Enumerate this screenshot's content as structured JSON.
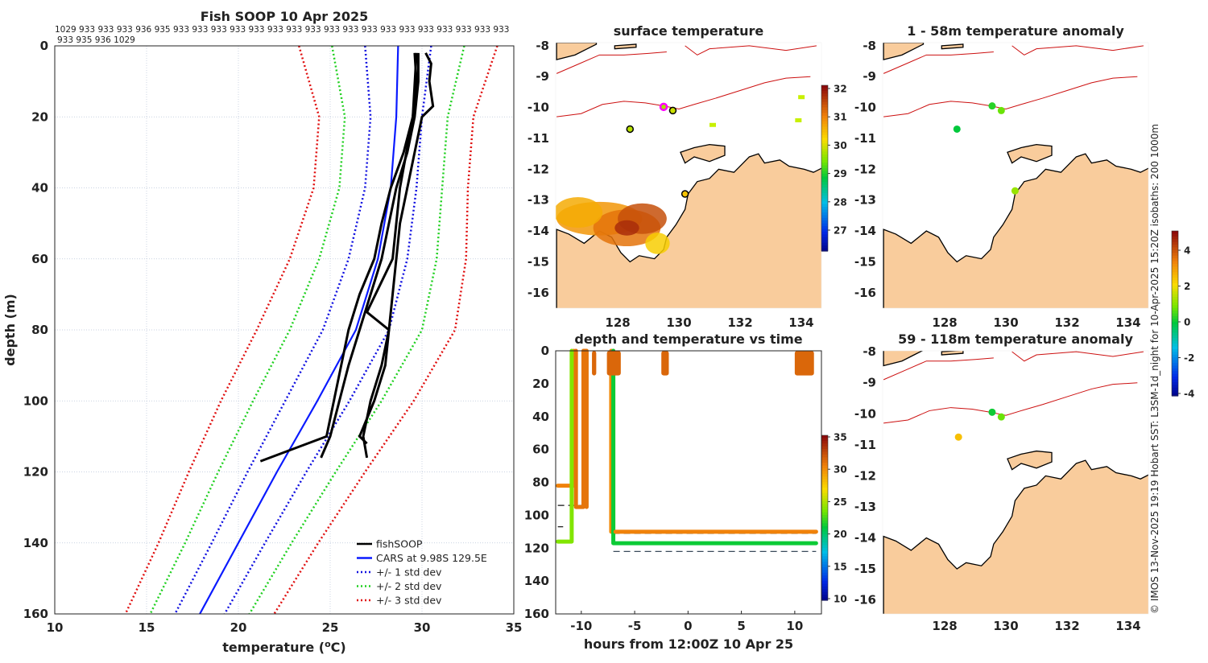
{
  "chart_data": [
    {
      "type": "line",
      "title": "Fish SOOP 10 Apr 2025",
      "pressure_labels_line1": "1029 933 933 933 936 935 933 933 933 933 933 933 933 933 933 933 933 933 933 933 933 933 933 933",
      "pressure_labels_line2": "933 935 936 1029",
      "xlabel": "temperature (°C)",
      "xlabel_main": "temperature (",
      "xlabel_sup": "o",
      "xlabel_end": "C)",
      "ylabel": "depth (m)",
      "xlim": [
        10,
        35
      ],
      "ylim": [
        0,
        160
      ],
      "y_reversed": true,
      "xticks": [
        "10",
        "15",
        "20",
        "25",
        "30",
        "35"
      ],
      "yticks": [
        "0",
        "20",
        "40",
        "60",
        "80",
        "100",
        "120",
        "140",
        "160"
      ],
      "grid": true,
      "legend_placement": "bottom-right",
      "legend": [
        "fishSOOP",
        "CARS at 9.98S 129.5E",
        "+/- 1 std dev",
        "+/- 2 std dev",
        "+/- 3 std dev"
      ],
      "cars": {
        "depth": [
          0,
          20,
          40,
          60,
          80,
          100,
          120,
          140,
          160
        ],
        "mean": [
          28.7,
          28.6,
          28.3,
          27.6,
          26.4,
          24.3,
          22.1,
          20.0,
          17.9
        ],
        "std": [
          1.8,
          1.4,
          1.4,
          1.6,
          1.8,
          1.75,
          1.6,
          1.45,
          1.35
        ]
      },
      "fishsoop_profiles": [
        {
          "depth": [
            2,
            5,
            10,
            17,
            20,
            30,
            40,
            50,
            60,
            70,
            80,
            90,
            100,
            110,
            116
          ],
          "temp": [
            30.2,
            30.5,
            30.4,
            30.6,
            30.0,
            29.6,
            29.2,
            28.8,
            28.6,
            28.4,
            28.2,
            27.8,
            27.2,
            26.8,
            27.0
          ]
        },
        {
          "depth": [
            2,
            10,
            20,
            30,
            40,
            50,
            60,
            70,
            80,
            90,
            100,
            110,
            116
          ],
          "temp": [
            29.8,
            29.8,
            29.6,
            29.2,
            28.6,
            28.2,
            27.8,
            27.2,
            26.6,
            26.0,
            25.5,
            25.0,
            24.5
          ]
        },
        {
          "depth": [
            2,
            10,
            20,
            30,
            40,
            50,
            60,
            70,
            80,
            90,
            100,
            110,
            117
          ],
          "temp": [
            29.6,
            29.7,
            29.5,
            29.0,
            28.3,
            27.8,
            27.4,
            26.6,
            26.0,
            25.6,
            25.2,
            24.8,
            21.2
          ]
        },
        {
          "depth": [
            2,
            20,
            40,
            60,
            75,
            80,
            90,
            100,
            110,
            112
          ],
          "temp": [
            29.7,
            29.5,
            28.8,
            28.4,
            27.0,
            28.2,
            28.0,
            27.4,
            26.6,
            27.0
          ]
        }
      ]
    },
    {
      "type": "heatmap",
      "title": "surface temperature",
      "xlim": [
        125.97,
        134.66
      ],
      "ylim": [
        -16.5,
        -7.9
      ],
      "xticks": [
        "128",
        "130",
        "132",
        "134"
      ],
      "yticks": [
        "-8",
        "-9",
        "-10",
        "-11",
        "-12",
        "-13",
        "-14",
        "-15",
        "-16"
      ],
      "colorbar": {
        "min": 26.5,
        "max": 32.2,
        "ticks": [
          "32",
          "31",
          "30",
          "29",
          "28",
          "27"
        ]
      },
      "points": [
        {
          "lon": 128.4,
          "lat": -10.7,
          "value": 30.0
        },
        {
          "lon": 129.5,
          "lat": -9.98,
          "value": 29.9,
          "highlight": true
        },
        {
          "lon": 129.8,
          "lat": -10.1,
          "value": 30.1
        },
        {
          "lon": 130.2,
          "lat": -12.8,
          "value": 30.6
        }
      ],
      "sst_patch_values": [
        31.0,
        31.3,
        31.6,
        31.9,
        30.8,
        30.5
      ]
    },
    {
      "type": "scatter",
      "title": "depth and temperature vs time",
      "xlabel": "hours from 12:00Z 10 Apr 25",
      "xlim": [
        -12.4,
        12.5
      ],
      "ylim": [
        0,
        160
      ],
      "y_reversed": true,
      "xticks": [
        "-10",
        "-5",
        "0",
        "5",
        "10"
      ],
      "yticks": [
        "0",
        "20",
        "40",
        "60",
        "80",
        "100",
        "120",
        "140",
        "160"
      ],
      "colorbar": {
        "min": 10,
        "max": 35,
        "ticks": [
          "35",
          "30",
          "25",
          "20",
          "15",
          "10"
        ]
      },
      "traces": [
        {
          "t": [
            -12.2,
            -10.7,
            -10.7,
            -10.7
          ],
          "depth": [
            82,
            82,
            40,
            0
          ],
          "temp": 30.5
        },
        {
          "t": [
            -12.2,
            -10.9,
            -10.9,
            -10.9
          ],
          "depth": [
            116,
            116,
            100,
            0
          ],
          "temp": 24.0
        },
        {
          "t": [
            -10.5,
            -10.5,
            -9.8,
            -9.8,
            -9.5,
            -9.5
          ],
          "depth": [
            0,
            95,
            95,
            0,
            0,
            95
          ],
          "temp": 31.0
        },
        {
          "t": [
            -7.2,
            -7.2,
            -7.0,
            -7.0
          ],
          "depth": [
            0,
            110,
            110,
            0
          ],
          "temp": 30.2
        },
        {
          "t": [
            -7.0,
            -7.0,
            12.0
          ],
          "depth": [
            0,
            117,
            117
          ],
          "temp": 21.5
        },
        {
          "t": [
            -6.8,
            12.0
          ],
          "depth": [
            110,
            110
          ],
          "temp": 30.5
        },
        {
          "t": [
            -9.0,
            -8.6
          ],
          "depth": [
            0,
            15
          ],
          "temp": 31.5
        },
        {
          "t": [
            -7.6,
            -6.3
          ],
          "depth": [
            0,
            15
          ],
          "temp": 31.5
        },
        {
          "t": [
            -2.5,
            -1.8
          ],
          "depth": [
            0,
            15
          ],
          "temp": 31.5
        },
        {
          "t": [
            10.0,
            11.8
          ],
          "depth": [
            0,
            15
          ],
          "temp": 31.5
        }
      ],
      "bottom_depth_lines": [
        {
          "t": [
            -12.2,
            -9.5
          ],
          "depth": 94
        },
        {
          "t": [
            -12.2,
            -11.7
          ],
          "depth": 107
        },
        {
          "t": [
            -7.0,
            12.0
          ],
          "depth": 111
        },
        {
          "t": [
            -7.0,
            12.0
          ],
          "depth": 122
        }
      ]
    },
    {
      "type": "scatter",
      "title": "1 - 58m temperature anomaly",
      "xlim": [
        125.97,
        134.66
      ],
      "ylim": [
        -16.5,
        -7.9
      ],
      "xticks": [
        "128",
        "130",
        "132",
        "134"
      ],
      "yticks": [
        "-8",
        "-9",
        "-10",
        "-11",
        "-12",
        "-13",
        "-14",
        "-15",
        "-16"
      ],
      "points": [
        {
          "lon": 129.55,
          "lat": -9.95,
          "value": 0.3
        },
        {
          "lon": 129.85,
          "lat": -10.1,
          "value": 0.8
        },
        {
          "lon": 128.4,
          "lat": -10.7,
          "value": 0.0
        },
        {
          "lon": 130.3,
          "lat": -12.7,
          "value": 1.2
        }
      ]
    },
    {
      "type": "scatter",
      "title": "59 - 118m temperature anomaly",
      "xlim": [
        125.97,
        134.66
      ],
      "ylim": [
        -16.45,
        -7.97
      ],
      "xticks": [
        "128",
        "130",
        "132",
        "134"
      ],
      "yticks": [
        "-8",
        "-9",
        "-10",
        "-11",
        "-12",
        "-13",
        "-14",
        "-15",
        "-16"
      ],
      "colorbar": {
        "min": -4.1,
        "max": 5.0,
        "ticks": [
          "4",
          "2",
          "0",
          "-2",
          "-4"
        ]
      },
      "points": [
        {
          "lon": 129.55,
          "lat": -9.95,
          "value": 0.1
        },
        {
          "lon": 129.85,
          "lat": -10.1,
          "value": 0.8
        },
        {
          "lon": 128.45,
          "lat": -10.75,
          "value": 2.5
        }
      ]
    }
  ],
  "credit": "© IMOS 13-Nov-2025 19:19 Hobart SST: L3SM-1d_night for 10-Apr-2025 15:20Z isobaths: 200  1000m",
  "colors": {
    "land": "#f9cc9c",
    "isobath": "#cc1010",
    "grid": "#b8c4d8"
  }
}
